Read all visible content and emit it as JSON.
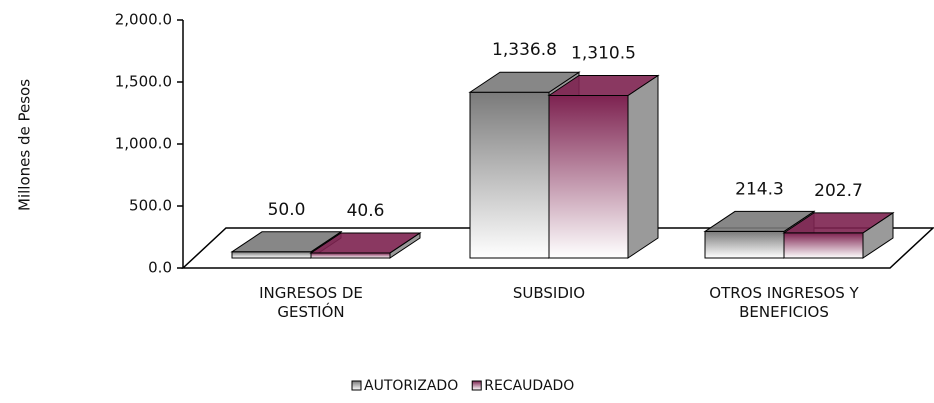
{
  "chart_data": {
    "type": "bar3d",
    "y_label": "Millones de Pesos",
    "categories": [
      "INGRESOS DE GESTIÓN",
      "SUBSIDIO",
      "OTROS INGRESOS Y BENEFICIOS"
    ],
    "series": [
      {
        "name": "AUTORIZADO",
        "color": "#7a7a7a",
        "values": [
          50.0,
          1336.8,
          214.3
        ],
        "value_labels": [
          "50.0",
          "1,336.8",
          "214.3"
        ]
      },
      {
        "name": "RECAUDADO",
        "color": "#7d2250",
        "values": [
          40.6,
          1310.5,
          202.7
        ],
        "value_labels": [
          "40.6",
          "1,310.5",
          "202.7"
        ]
      }
    ],
    "ylim": [
      0,
      2000
    ],
    "yticks": [
      {
        "value": 0,
        "label": "0.0"
      },
      {
        "value": 500,
        "label": "500.0"
      },
      {
        "value": 1000,
        "label": "1,000.0"
      },
      {
        "value": 1500,
        "label": "1,500.0"
      },
      {
        "value": 2000,
        "label": "2,000.0"
      }
    ]
  }
}
